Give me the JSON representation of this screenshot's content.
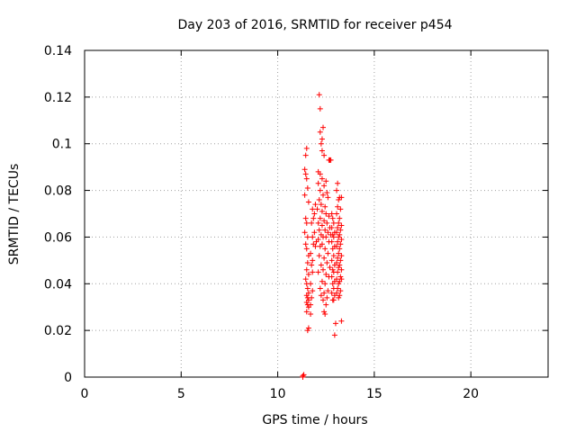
{
  "chart_data": {
    "type": "scatter",
    "title": "Day 203 of 2016, SRMTID for receiver p454",
    "xlabel": "GPS time / hours",
    "ylabel": "SRMTID / TECUs",
    "xlim": [
      0,
      24
    ],
    "ylim": [
      0,
      0.14
    ],
    "grid": true,
    "xticks": [
      0,
      5,
      10,
      15,
      20
    ],
    "xtick_labels": [
      "0",
      "5",
      "10",
      "15",
      "20"
    ],
    "yticks": [
      0,
      0.02,
      0.04,
      0.06,
      0.08,
      0.1,
      0.12,
      0.14
    ],
    "ytick_labels": [
      "0",
      "0.02",
      "0.04",
      "0.06",
      "0.08",
      "0.1",
      "0.12",
      "0.14"
    ],
    "marker": "+",
    "color": "#ff0000",
    "series": [
      {
        "name": "SRMTID",
        "points": [
          [
            11.3,
            0.0
          ],
          [
            11.35,
            0.001
          ],
          [
            11.3,
            0.0005
          ],
          [
            11.5,
            0.098
          ],
          [
            11.45,
            0.095
          ],
          [
            11.4,
            0.089
          ],
          [
            11.45,
            0.087
          ],
          [
            11.5,
            0.085
          ],
          [
            11.55,
            0.081
          ],
          [
            11.4,
            0.078
          ],
          [
            11.6,
            0.075
          ],
          [
            11.45,
            0.068
          ],
          [
            11.5,
            0.066
          ],
          [
            11.4,
            0.062
          ],
          [
            11.55,
            0.06
          ],
          [
            11.45,
            0.057
          ],
          [
            11.5,
            0.055
          ],
          [
            11.6,
            0.052
          ],
          [
            11.55,
            0.049
          ],
          [
            11.5,
            0.046
          ],
          [
            11.6,
            0.044
          ],
          [
            11.45,
            0.042
          ],
          [
            11.5,
            0.04
          ],
          [
            11.55,
            0.038
          ],
          [
            11.6,
            0.036
          ],
          [
            11.5,
            0.035
          ],
          [
            11.55,
            0.034
          ],
          [
            11.6,
            0.033
          ],
          [
            11.5,
            0.032
          ],
          [
            11.55,
            0.031
          ],
          [
            11.6,
            0.03
          ],
          [
            11.5,
            0.028
          ],
          [
            11.7,
            0.027
          ],
          [
            11.6,
            0.021
          ],
          [
            11.55,
            0.02
          ],
          [
            11.8,
            0.045
          ],
          [
            11.75,
            0.048
          ],
          [
            11.8,
            0.05
          ],
          [
            11.7,
            0.053
          ],
          [
            11.85,
            0.057
          ],
          [
            11.8,
            0.06
          ],
          [
            11.9,
            0.062
          ],
          [
            11.75,
            0.066
          ],
          [
            11.85,
            0.068
          ],
          [
            11.9,
            0.07
          ],
          [
            11.8,
            0.072
          ],
          [
            11.95,
            0.074
          ],
          [
            11.7,
            0.04
          ],
          [
            11.8,
            0.037
          ],
          [
            11.75,
            0.034
          ],
          [
            11.7,
            0.031
          ],
          [
            11.95,
            0.056
          ],
          [
            12.0,
            0.058
          ],
          [
            12.15,
            0.121
          ],
          [
            12.2,
            0.115
          ],
          [
            12.35,
            0.107
          ],
          [
            12.2,
            0.105
          ],
          [
            12.3,
            0.102
          ],
          [
            12.25,
            0.1
          ],
          [
            12.3,
            0.097
          ],
          [
            12.4,
            0.095
          ],
          [
            12.7,
            0.093
          ],
          [
            12.75,
            0.093
          ],
          [
            12.65,
            0.093
          ],
          [
            12.1,
            0.088
          ],
          [
            12.2,
            0.087
          ],
          [
            12.3,
            0.085
          ],
          [
            12.1,
            0.083
          ],
          [
            12.5,
            0.084
          ],
          [
            12.4,
            0.082
          ],
          [
            12.2,
            0.08
          ],
          [
            12.55,
            0.079
          ],
          [
            12.35,
            0.078
          ],
          [
            12.6,
            0.077
          ],
          [
            12.15,
            0.076
          ],
          [
            12.25,
            0.074
          ],
          [
            12.45,
            0.073
          ],
          [
            12.05,
            0.072
          ],
          [
            12.3,
            0.071
          ],
          [
            12.5,
            0.07
          ],
          [
            12.65,
            0.069
          ],
          [
            12.2,
            0.068
          ],
          [
            12.4,
            0.067
          ],
          [
            12.1,
            0.066
          ],
          [
            12.55,
            0.066
          ],
          [
            12.3,
            0.065
          ],
          [
            12.7,
            0.064
          ],
          [
            12.15,
            0.063
          ],
          [
            12.45,
            0.063
          ],
          [
            12.6,
            0.062
          ],
          [
            12.25,
            0.061
          ],
          [
            12.75,
            0.061
          ],
          [
            12.35,
            0.06
          ],
          [
            12.5,
            0.06
          ],
          [
            12.1,
            0.059
          ],
          [
            12.65,
            0.058
          ],
          [
            12.3,
            0.057
          ],
          [
            12.2,
            0.056
          ],
          [
            12.45,
            0.055
          ],
          [
            12.6,
            0.053
          ],
          [
            12.15,
            0.052
          ],
          [
            12.4,
            0.051
          ],
          [
            12.55,
            0.049
          ],
          [
            12.25,
            0.048
          ],
          [
            12.7,
            0.047
          ],
          [
            12.35,
            0.046
          ],
          [
            12.1,
            0.045
          ],
          [
            12.5,
            0.044
          ],
          [
            12.65,
            0.043
          ],
          [
            12.3,
            0.041
          ],
          [
            12.45,
            0.04
          ],
          [
            12.2,
            0.038
          ],
          [
            12.6,
            0.037
          ],
          [
            12.4,
            0.036
          ],
          [
            12.25,
            0.035
          ],
          [
            12.55,
            0.034
          ],
          [
            12.35,
            0.033
          ],
          [
            12.5,
            0.031
          ],
          [
            12.4,
            0.028
          ],
          [
            12.45,
            0.027
          ],
          [
            12.8,
            0.07
          ],
          [
            12.85,
            0.068
          ],
          [
            12.9,
            0.066
          ],
          [
            12.8,
            0.064
          ],
          [
            12.95,
            0.062
          ],
          [
            12.85,
            0.061
          ],
          [
            12.9,
            0.06
          ],
          [
            12.8,
            0.058
          ],
          [
            12.95,
            0.056
          ],
          [
            12.85,
            0.055
          ],
          [
            12.9,
            0.052
          ],
          [
            12.8,
            0.05
          ],
          [
            12.95,
            0.048
          ],
          [
            12.85,
            0.046
          ],
          [
            12.9,
            0.045
          ],
          [
            12.8,
            0.043
          ],
          [
            12.95,
            0.041
          ],
          [
            12.85,
            0.04
          ],
          [
            12.9,
            0.038
          ],
          [
            12.8,
            0.036
          ],
          [
            12.95,
            0.035
          ],
          [
            12.85,
            0.033
          ],
          [
            12.9,
            0.033
          ],
          [
            13.1,
            0.083
          ],
          [
            13.05,
            0.08
          ],
          [
            13.2,
            0.077
          ],
          [
            13.15,
            0.076
          ],
          [
            13.3,
            0.077
          ],
          [
            13.1,
            0.073
          ],
          [
            13.25,
            0.072
          ],
          [
            13.05,
            0.07
          ],
          [
            13.2,
            0.068
          ],
          [
            13.15,
            0.066
          ],
          [
            13.3,
            0.065
          ],
          [
            13.1,
            0.064
          ],
          [
            13.25,
            0.063
          ],
          [
            13.05,
            0.062
          ],
          [
            13.2,
            0.061
          ],
          [
            13.15,
            0.06
          ],
          [
            13.3,
            0.059
          ],
          [
            13.1,
            0.058
          ],
          [
            13.25,
            0.057
          ],
          [
            13.05,
            0.056
          ],
          [
            13.2,
            0.055
          ],
          [
            13.15,
            0.053
          ],
          [
            13.3,
            0.052
          ],
          [
            13.1,
            0.051
          ],
          [
            13.25,
            0.05
          ],
          [
            13.05,
            0.049
          ],
          [
            13.2,
            0.048
          ],
          [
            13.15,
            0.047
          ],
          [
            13.3,
            0.046
          ],
          [
            13.1,
            0.045
          ],
          [
            13.25,
            0.043
          ],
          [
            13.05,
            0.042
          ],
          [
            13.2,
            0.041
          ],
          [
            13.15,
            0.04
          ],
          [
            13.3,
            0.042
          ],
          [
            13.1,
            0.038
          ],
          [
            13.25,
            0.037
          ],
          [
            13.05,
            0.036
          ],
          [
            13.2,
            0.035
          ],
          [
            13.15,
            0.034
          ],
          [
            13.3,
            0.024
          ],
          [
            13.0,
            0.023
          ],
          [
            12.95,
            0.018
          ]
        ]
      }
    ]
  }
}
